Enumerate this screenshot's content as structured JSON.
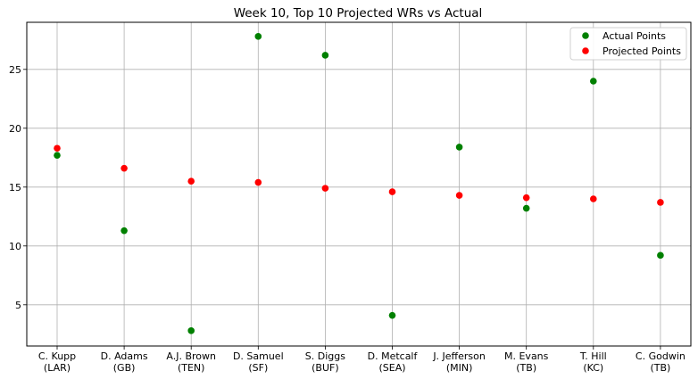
{
  "chart_data": {
    "type": "scatter",
    "title": "Week 10, Top 10 Projected WRs vs Actual",
    "xlabel": "",
    "ylabel": "",
    "categories": [
      [
        "C. Kupp",
        "(LAR)"
      ],
      [
        "D. Adams",
        "(GB)"
      ],
      [
        "A.J. Brown",
        "(TEN)"
      ],
      [
        "D. Samuel",
        "(SF)"
      ],
      [
        "S. Diggs",
        "(BUF)"
      ],
      [
        "D. Metcalf",
        "(SEA)"
      ],
      [
        "J. Jefferson",
        "(MIN)"
      ],
      [
        "M. Evans",
        "(TB)"
      ],
      [
        "T. Hill",
        "(KC)"
      ],
      [
        "C. Godwin",
        "(TB)"
      ]
    ],
    "series": [
      {
        "name": "Actual Points",
        "color": "#008000",
        "values": [
          17.7,
          11.3,
          2.8,
          27.8,
          26.2,
          4.1,
          18.4,
          13.2,
          24.0,
          9.2
        ]
      },
      {
        "name": "Projected Points",
        "color": "#ff0000",
        "values": [
          18.3,
          16.6,
          15.5,
          15.4,
          14.9,
          14.6,
          14.3,
          14.1,
          14.0,
          13.7
        ]
      }
    ],
    "ylim": [
      1.5,
      29.0
    ],
    "yticks": [
      5,
      10,
      15,
      20,
      25
    ],
    "grid": true,
    "legend": "top-right"
  }
}
